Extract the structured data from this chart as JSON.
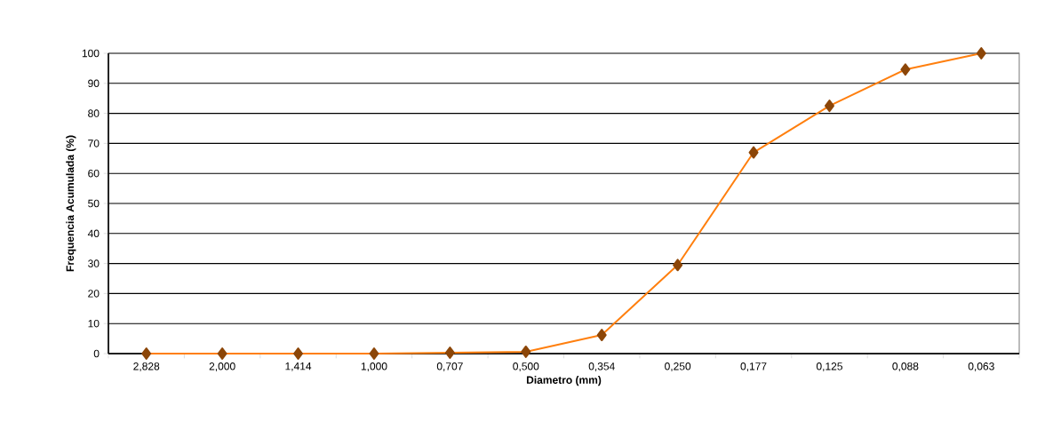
{
  "chart_data": {
    "type": "line",
    "xlabel": "Diametro (mm)",
    "ylabel": "Frequencia Acumulada (%)",
    "categories": [
      "2,828",
      "2,000",
      "1,414",
      "1,000",
      "0,707",
      "0,500",
      "0,354",
      "0,250",
      "0,177",
      "0,125",
      "0,088",
      "0,063"
    ],
    "series": [
      {
        "color": "#ff7f0e",
        "values": [
          0,
          0,
          0,
          0,
          0.3,
          0.6,
          6.2,
          29.5,
          67,
          82.5,
          94.6,
          100
        ]
      }
    ],
    "ylim": [
      0,
      100
    ],
    "yticks": [
      0,
      10,
      20,
      30,
      40,
      50,
      60,
      70,
      80,
      90,
      100
    ],
    "grid": "y",
    "marker": "diamond",
    "line_style": "solid"
  }
}
